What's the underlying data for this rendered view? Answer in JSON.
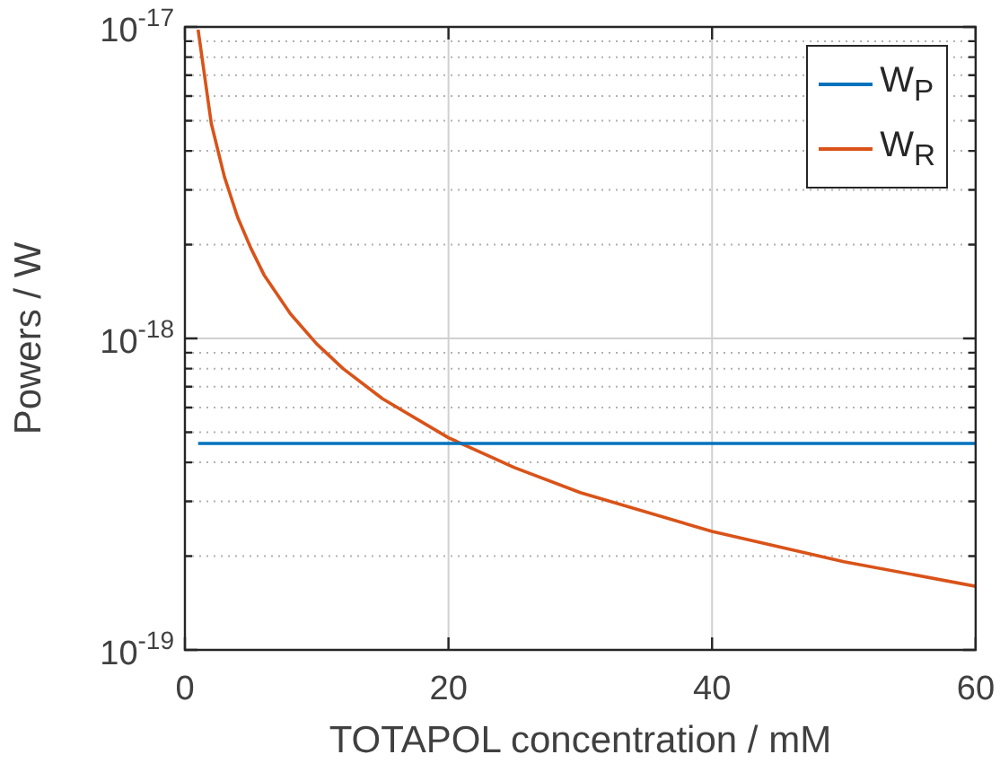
{
  "chart_data": {
    "type": "line",
    "xlabel": "TOTAPOL concentration / mM",
    "ylabel": "Powers / W",
    "xlim": [
      0,
      60
    ],
    "xticks": [
      0,
      20,
      40,
      60
    ],
    "ylim": [
      1e-19,
      1e-17
    ],
    "log": true,
    "grid": true,
    "legend": "top right",
    "yticks": [
      {
        "value": 1e-19,
        "label": "10$^{-19}$"
      },
      {
        "value": 2e-19,
        "label": null
      },
      {
        "value": 3e-19,
        "label": null
      },
      {
        "value": 4e-19,
        "label": null
      },
      {
        "value": 5e-19,
        "label": null
      },
      {
        "value": 6e-19,
        "label": null
      },
      {
        "value": 7e-19,
        "label": null
      },
      {
        "value": 8e-19,
        "label": null
      },
      {
        "value": 9e-19,
        "label": null
      },
      {
        "value": 1e-18,
        "label": "10$^{-18}$"
      },
      {
        "value": 2e-18,
        "label": null
      },
      {
        "value": 3e-18,
        "label": null
      },
      {
        "value": 4e-18,
        "label": null
      },
      {
        "value": 5e-18,
        "label": null
      },
      {
        "value": 6e-18,
        "label": null
      },
      {
        "value": 7e-18,
        "label": null
      },
      {
        "value": 8e-18,
        "label": null
      },
      {
        "value": 9e-18,
        "label": null
      },
      {
        "value": 1e-17,
        "label": "10$^{-17}$"
      }
    ],
    "series": [
      {
        "name": "W$_{P}$",
        "color": "#0072bd",
        "x": [
          1,
          60
        ],
        "values": [
          4.6e-19,
          4.6e-19
        ]
      },
      {
        "name": "W$_{R}$",
        "color": "#d95319",
        "x": [
          1,
          2,
          3,
          4,
          5,
          6,
          8,
          10,
          12,
          15,
          20,
          25,
          30,
          40,
          50,
          60
        ],
        "values": [
          9.8e-18,
          4.9e-18,
          3.3e-18,
          2.45e-18,
          1.95e-18,
          1.6e-18,
          1.2e-18,
          9.6e-19,
          8e-19,
          6.4e-19,
          4.8e-19,
          3.85e-19,
          3.2e-19,
          2.4e-19,
          1.92e-19,
          1.6e-19
        ]
      }
    ]
  }
}
